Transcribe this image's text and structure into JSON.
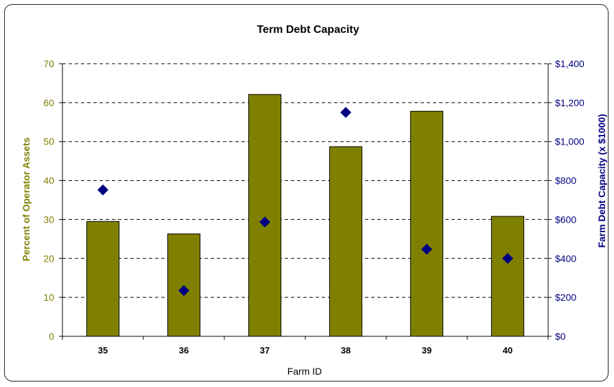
{
  "chart_data": {
    "type": "bar",
    "title": "Term Debt Capacity",
    "xlabel": "Farm ID",
    "ylabel_left": "Percent of Operator Assets",
    "ylabel_right": "Farm Debt Capacity (x $1000)",
    "categories": [
      "35",
      "36",
      "37",
      "38",
      "39",
      "40"
    ],
    "ylim_left": [
      0,
      70
    ],
    "ylim_right": [
      0,
      1400
    ],
    "yticks_left": [
      "0",
      "10",
      "20",
      "30",
      "40",
      "50",
      "60",
      "70"
    ],
    "yticks_right": [
      "$0",
      "$200",
      "$400",
      "$600",
      "$800",
      "$1,000",
      "$1,200",
      "$1,400"
    ],
    "grid": true,
    "series": [
      {
        "type": "bar",
        "axis": "left",
        "values": [
          29.5,
          26.3,
          62.1,
          48.7,
          57.8,
          30.8
        ]
      },
      {
        "type": "scatter",
        "axis": "right",
        "values": [
          752,
          235,
          587,
          1150,
          447,
          400
        ]
      }
    ],
    "colors": {
      "bar": "#808000",
      "marker": "#000080",
      "left_axis": "#808000",
      "right_axis": "#000080"
    }
  }
}
